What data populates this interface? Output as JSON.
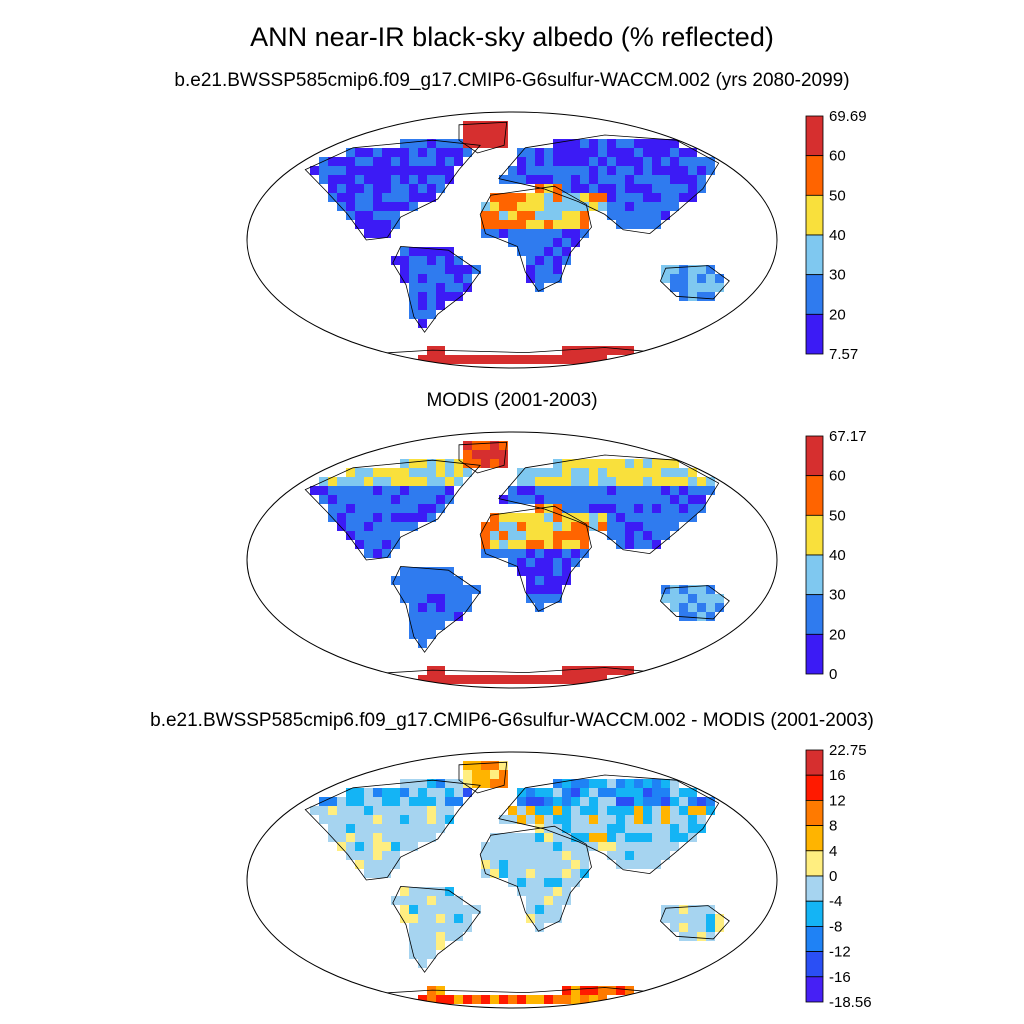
{
  "figure": {
    "title": "ANN near-IR black-sky albedo (% reflected)"
  },
  "panels": [
    {
      "title": "b.e21.BWSSP585cmip6.f09_g17.CMIP6-G6sulfur-WACCM.002 (yrs 2080-2099)",
      "colorbar": {
        "labels": [
          "69.69",
          "60",
          "50",
          "40",
          "30",
          "20",
          "7.57"
        ],
        "colors": [
          "#d62f2f",
          "#ff6400",
          "#f9e03c",
          "#7fc8f0",
          "#2f7bef",
          "#3c1bf5"
        ]
      }
    },
    {
      "title": "MODIS (2001-2003)",
      "colorbar": {
        "labels": [
          "67.17",
          "60",
          "50",
          "40",
          "30",
          "20",
          "0"
        ],
        "colors": [
          "#d62f2f",
          "#ff6400",
          "#f9e03c",
          "#7fc8f0",
          "#2f7bef",
          "#3c1bf5"
        ]
      }
    },
    {
      "title": "b.e21.BWSSP585cmip6.f09_g17.CMIP6-G6sulfur-WACCM.002 - MODIS (2001-2003)",
      "colorbar": {
        "labels": [
          "22.75",
          "16",
          "12",
          "8",
          "4",
          "0",
          "-4",
          "-8",
          "-12",
          "-16",
          "-18.56"
        ],
        "colors": [
          "#d62f2f",
          "#ff1a00",
          "#ff7a00",
          "#ffb400",
          "#ffee80",
          "#a6d4f0",
          "#14b4f5",
          "#1f82f5",
          "#2a4ff5",
          "#4620f5"
        ]
      }
    }
  ]
}
